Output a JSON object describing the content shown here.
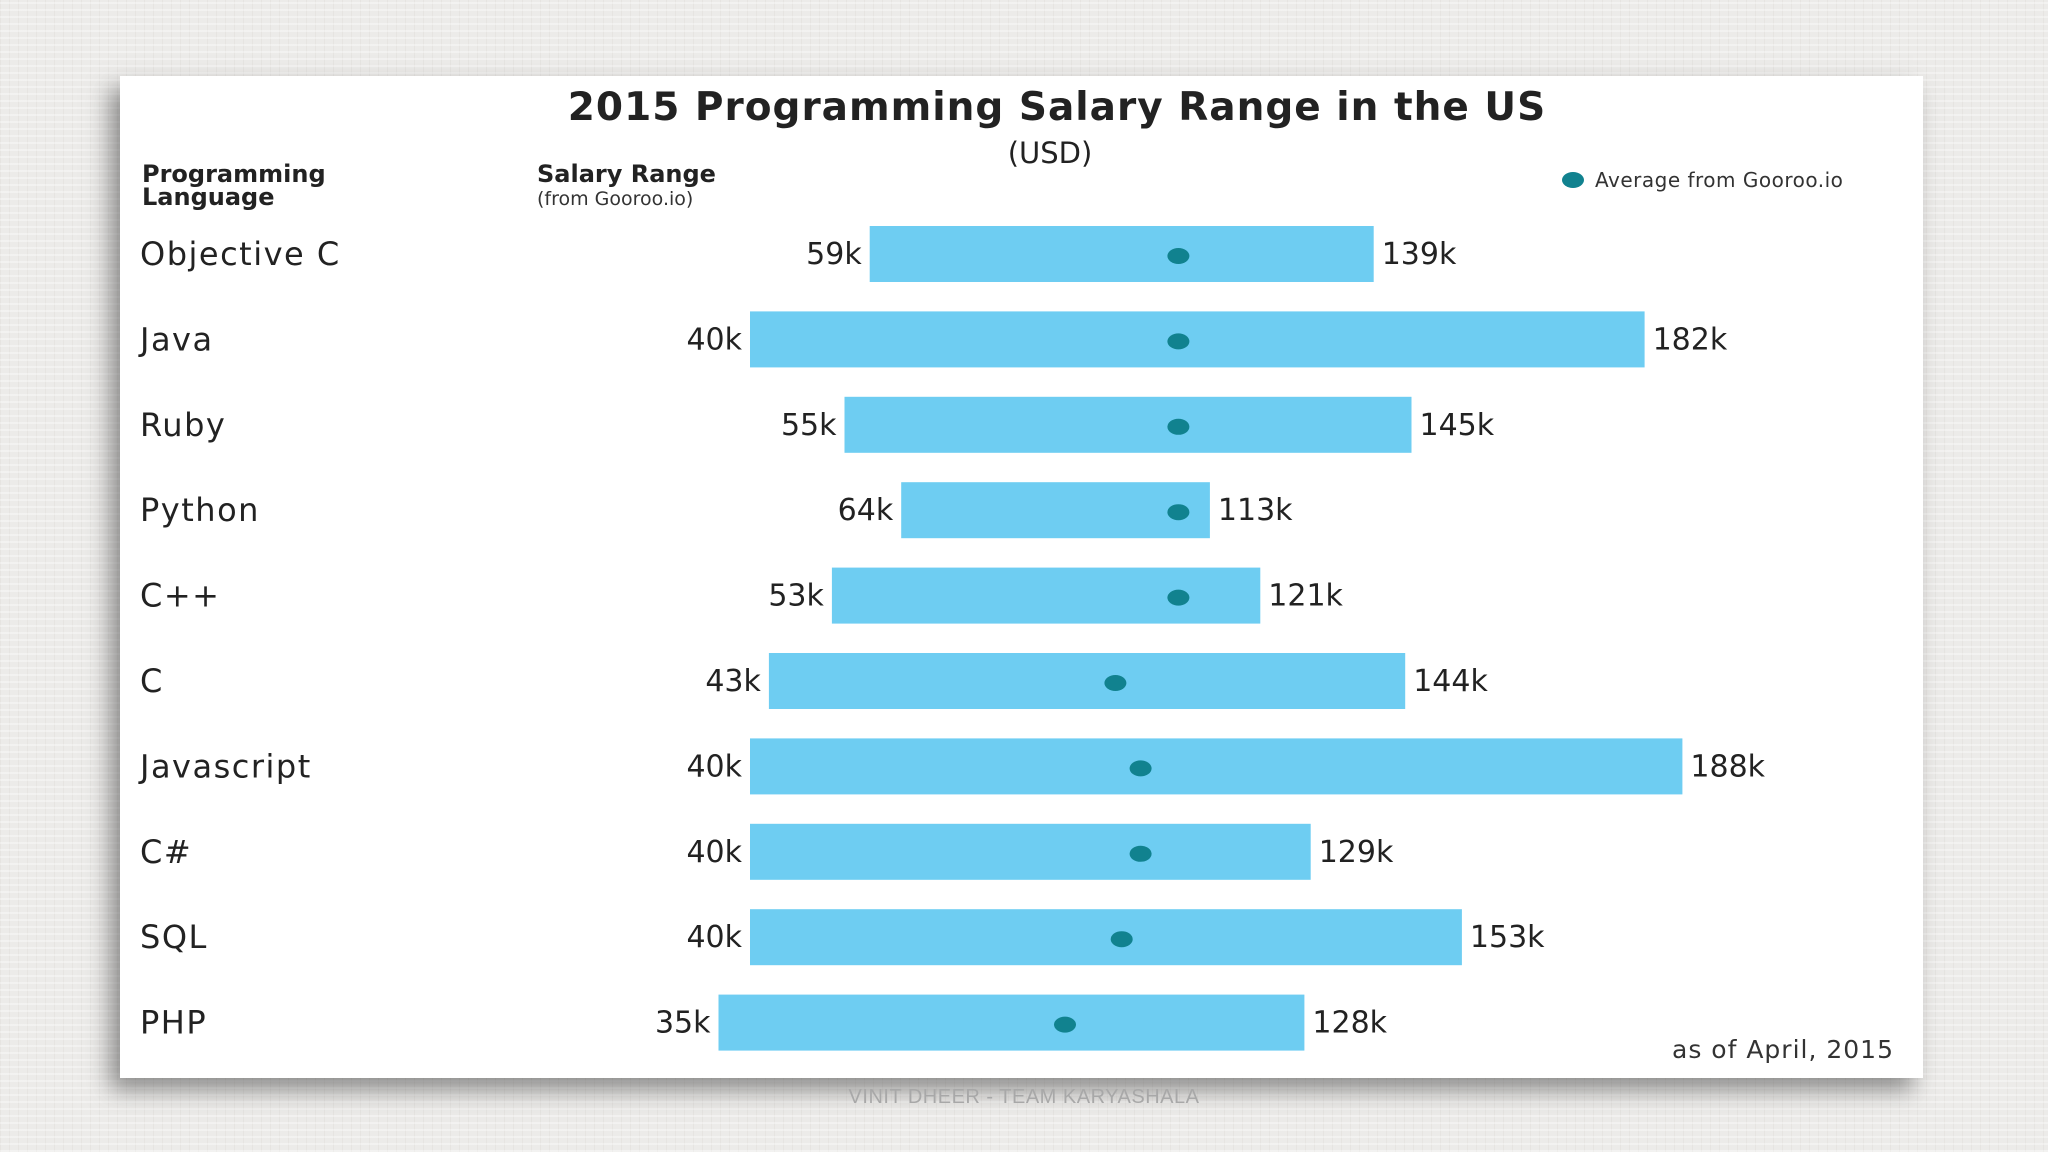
{
  "colors": {
    "bar": "#6ecdf2",
    "dot": "#11828f",
    "text": "#222222"
  },
  "chart_data": {
    "type": "bar",
    "orientation": "horizontal-range",
    "title": "2015 Programming Salary Range in the US",
    "subtitle": "(USD)",
    "col_header_language": [
      "Programming",
      "Language"
    ],
    "col_header_range": "Salary Range",
    "col_header_range_sub": "(from Gooroo.io)",
    "legend_label": "Average from Gooroo.io",
    "note": "as of April, 2015",
    "xlim": [
      0,
      200
    ],
    "unit": "k USD",
    "categories": [
      "Objective C",
      "Java",
      "Ruby",
      "Python",
      "C++",
      "C",
      "Javascript",
      "C#",
      "SQL",
      "PHP"
    ],
    "series": [
      {
        "name": "min",
        "values": [
          59,
          40,
          55,
          64,
          53,
          43,
          40,
          40,
          40,
          35
        ]
      },
      {
        "name": "max",
        "values": [
          139,
          182,
          145,
          113,
          121,
          144,
          188,
          129,
          153,
          128
        ]
      },
      {
        "name": "Average from Gooroo.io",
        "values": [
          108,
          108,
          108,
          108,
          108,
          98,
          102,
          102,
          99,
          90
        ]
      }
    ],
    "min_labels": [
      "59k",
      "40k",
      "55k",
      "64k",
      "53k",
      "43k",
      "40k",
      "40k",
      "40k",
      "35k"
    ],
    "max_labels": [
      "139k",
      "182k",
      "145k",
      "113k",
      "121k",
      "144k",
      "188k",
      "129k",
      "153k",
      "128k"
    ]
  },
  "footer": "VINIT DHEER - TEAM KARYASHALA"
}
